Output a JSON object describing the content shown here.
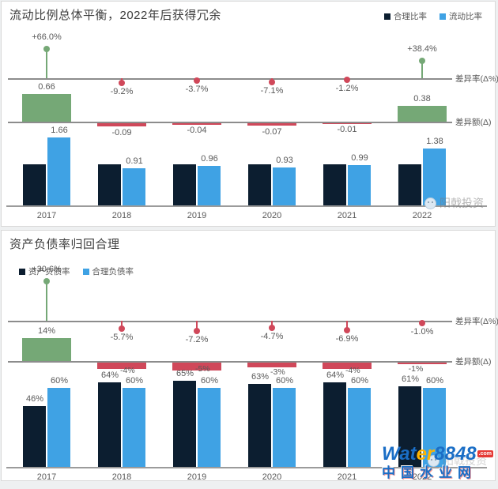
{
  "colors": {
    "dark": "#0c1e30",
    "blue": "#3fa2e4",
    "green": "#75a876",
    "red": "#d0485a",
    "axis": "#8c8c8c",
    "text": "#595959"
  },
  "brand_watermark": {
    "text": "阳戟投资"
  },
  "logo": {
    "wat": "Wat",
    "er": "er",
    "num": "8848",
    "dotcom": ".com",
    "site_name": "中国水业网"
  },
  "chart_data": [
    {
      "type": "bar",
      "title": "流动比例总体平衡，2022年后获得冗余",
      "legend_position": "top-right",
      "legend": [
        {
          "label": "合理比率",
          "color_key": "dark"
        },
        {
          "label": "流动比率",
          "color_key": "blue"
        }
      ],
      "categories": [
        "2017",
        "2018",
        "2019",
        "2020",
        "2021",
        "2022"
      ],
      "series": [
        {
          "name": "合理比率",
          "color_key": "dark",
          "values": [
            1.0,
            1.0,
            1.0,
            1.0,
            1.0,
            1.0
          ],
          "labels": [
            "",
            "",
            "",
            "",
            "",
            ""
          ]
        },
        {
          "name": "流动比率",
          "color_key": "blue",
          "values": [
            1.66,
            0.91,
            0.96,
            0.93,
            0.99,
            1.38
          ],
          "labels": [
            "1.66",
            "0.91",
            "0.96",
            "0.93",
            "0.99",
            "1.38"
          ]
        }
      ],
      "delta_pct": {
        "axis_label": "差异率(Δ%)",
        "values": [
          66.0,
          -9.2,
          -3.7,
          -7.1,
          -1.2,
          38.4
        ],
        "labels": [
          "+66.0%",
          "-9.2%",
          "-3.7%",
          "-7.1%",
          "-1.2%",
          "+38.4%"
        ]
      },
      "delta_abs": {
        "axis_label": "差异额(Δ)",
        "values": [
          0.66,
          -0.09,
          -0.04,
          -0.07,
          -0.01,
          0.38
        ],
        "labels": [
          "0.66",
          "-0.09",
          "-0.04",
          "-0.07",
          "-0.01",
          "0.38"
        ],
        "placement": [
          "above-bar",
          "below-bar",
          "below-bar",
          "below-bar",
          "below-bar",
          "above-bar"
        ]
      }
    },
    {
      "type": "bar",
      "title": "资产负债率归回合理",
      "legend_position": "top-left",
      "legend": [
        {
          "label": "资产负债率",
          "color_key": "dark"
        },
        {
          "label": "合理负债率",
          "color_key": "blue"
        }
      ],
      "categories": [
        "2017",
        "2018",
        "2019",
        "2020",
        "2021",
        "2022"
      ],
      "series": [
        {
          "name": "资产负债率",
          "color_key": "dark",
          "values": [
            46,
            64,
            65,
            63,
            64,
            61
          ],
          "labels": [
            "46%",
            "64%",
            "65%",
            "63%",
            "64%",
            "61%"
          ]
        },
        {
          "name": "合理负债率",
          "color_key": "blue",
          "values": [
            60,
            60,
            60,
            60,
            60,
            60
          ],
          "labels": [
            "60%",
            "60%",
            "60%",
            "60%",
            "60%",
            "60%"
          ]
        }
      ],
      "delta_pct": {
        "axis_label": "差异率(Δ%)",
        "values": [
          30.6,
          -5.7,
          -7.2,
          -4.7,
          -6.9,
          -1.0
        ],
        "labels": [
          "+30.6%",
          "-5.7%",
          "-7.2%",
          "-4.7%",
          "-6.9%",
          "-1.0%"
        ]
      },
      "delta_abs": {
        "axis_label": "差异额(Δ)",
        "values": [
          14,
          -4,
          -5,
          -3,
          -4,
          -1
        ],
        "labels": [
          "14%",
          "-4%",
          "-5%",
          "-3%",
          "-4%",
          "-1%"
        ],
        "placement": [
          "above-bar",
          "beside-dark",
          "beside-dark",
          "beside-dark",
          "beside-dark",
          "above-dark"
        ]
      }
    }
  ]
}
